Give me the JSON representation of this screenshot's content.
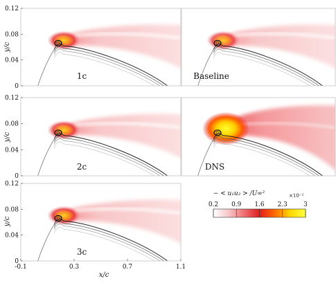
{
  "chart_data": {
    "type": "heatmap",
    "colorbar": {
      "title": "− < u₁u₂ > /U∞²",
      "multiplier": "×10⁻²",
      "ticks": [
        "0.2",
        "0.9",
        "1.6",
        "2.3",
        "3"
      ],
      "range": [
        0.2,
        3
      ],
      "colors": [
        "#ffffff",
        "#f6c6c8",
        "#ee6f72",
        "#e01e1e",
        "#ff6a00",
        "#ffd700",
        "#ffff40"
      ]
    },
    "axes": {
      "xlabel": "x/c",
      "ylabel": "y/c",
      "xlim": [
        -0.1,
        1.1
      ],
      "ylim": [
        0,
        0.12
      ],
      "xticks": [
        "-0.1",
        "0.3",
        "0.7",
        "1.1"
      ],
      "yticks": [
        "0",
        "0.04",
        "0.08",
        "0.12"
      ]
    },
    "panels": [
      {
        "label": "1c",
        "intensity": 0.75
      },
      {
        "label": "Baseline",
        "intensity": 0.7
      },
      {
        "label": "2c",
        "intensity": 0.75
      },
      {
        "label": "DNS",
        "intensity": 1.0
      },
      {
        "label": "3c",
        "intensity": 0.78
      }
    ]
  }
}
